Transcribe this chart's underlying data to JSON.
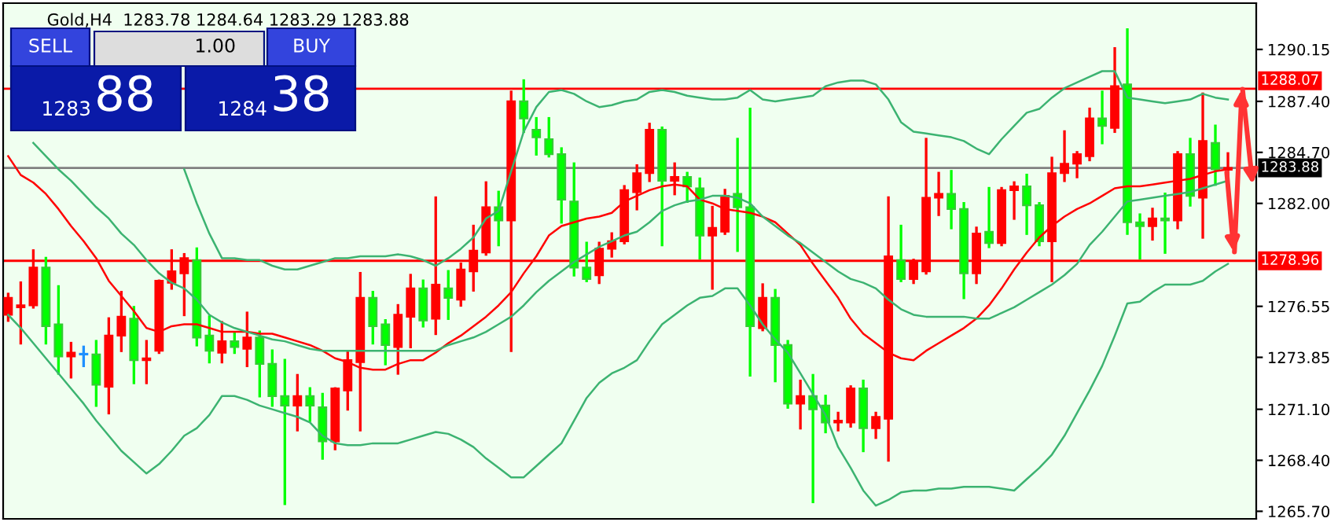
{
  "chart_data": {
    "type": "candlestick",
    "title": "Gold,H4  1283.78 1284.64 1283.29 1283.88",
    "categories": [
      null,
      null,
      null,
      null,
      null,
      null,
      null,
      null,
      null,
      null,
      null,
      null,
      null,
      null,
      null,
      null,
      null,
      null,
      null,
      null,
      null,
      null,
      null,
      null,
      null,
      null,
      null,
      null,
      null,
      null,
      null,
      null,
      null,
      null,
      null,
      null,
      null,
      null,
      null,
      null,
      null,
      null,
      null,
      null,
      null,
      null,
      null,
      null,
      null,
      null,
      null,
      null,
      null,
      null,
      null,
      null,
      null,
      null,
      null,
      null,
      null,
      null,
      null,
      null,
      null,
      null,
      null,
      null,
      null,
      null,
      null,
      null,
      null,
      null,
      null,
      null,
      null,
      null,
      null,
      null,
      null,
      null,
      null,
      null,
      null,
      null,
      null,
      null,
      null,
      null,
      null,
      null,
      null,
      null,
      null,
      null,
      null,
      null
    ],
    "ohlc": [
      [
        1276.1,
        1277.2,
        1275.8,
        1277.0
      ],
      [
        1276.5,
        1277.8,
        1274.6,
        1276.6
      ],
      [
        1276.6,
        1279.5,
        1276.5,
        1278.6
      ],
      [
        1278.6,
        1279.1,
        1274.6,
        1275.5
      ],
      [
        1275.6,
        1277.6,
        1273.0,
        1273.9
      ],
      [
        1273.9,
        1274.6,
        1272.8,
        1274.1
      ],
      [
        1274.0,
        1274.4,
        1273.4,
        1274.0
      ],
      [
        1274.0,
        1274.7,
        1271.3,
        1272.4
      ],
      [
        1272.3,
        1275.9,
        1270.9,
        1275.0
      ],
      [
        1275.0,
        1277.3,
        1274.2,
        1276.0
      ],
      [
        1275.9,
        1276.5,
        1272.5,
        1273.7
      ],
      [
        1273.7,
        1274.7,
        1272.5,
        1273.8
      ],
      [
        1274.2,
        1277.9,
        1274.1,
        1277.9
      ],
      [
        1277.8,
        1279.5,
        1277.5,
        1278.4
      ],
      [
        1278.3,
        1279.3,
        1276.1,
        1279.1
      ],
      [
        1279.0,
        1279.6,
        1274.5,
        1274.9
      ],
      [
        1275.0,
        1276.0,
        1273.6,
        1274.2
      ],
      [
        1274.1,
        1275.7,
        1273.6,
        1274.7
      ],
      [
        1274.7,
        1275.1,
        1274.1,
        1274.4
      ],
      [
        1274.3,
        1276.2,
        1273.4,
        1274.9
      ],
      [
        1274.9,
        1275.2,
        1271.8,
        1273.5
      ],
      [
        1273.5,
        1274.2,
        1271.3,
        1271.8
      ],
      [
        1271.8,
        1273.7,
        1266.1,
        1271.3
      ],
      [
        1271.3,
        1272.9,
        1270.0,
        1271.8
      ],
      [
        1271.8,
        1272.2,
        1270.5,
        1271.3
      ],
      [
        1271.2,
        1271.9,
        1268.5,
        1269.4
      ],
      [
        1269.4,
        1272.2,
        1269.0,
        1272.2
      ],
      [
        1272.1,
        1274.1,
        1271.1,
        1273.7
      ],
      [
        1273.6,
        1278.3,
        1270.0,
        1277.0
      ],
      [
        1277.0,
        1277.3,
        1274.6,
        1275.5
      ],
      [
        1275.6,
        1275.8,
        1273.5,
        1274.5
      ],
      [
        1274.4,
        1276.6,
        1273.0,
        1276.1
      ],
      [
        1276.0,
        1278.2,
        1274.4,
        1277.5
      ],
      [
        1277.5,
        1277.9,
        1275.5,
        1275.8
      ],
      [
        1275.9,
        1282.3,
        1275.1,
        1277.7
      ],
      [
        1277.5,
        1278.4,
        1275.9,
        1277.0
      ],
      [
        1276.9,
        1278.8,
        1276.6,
        1278.5
      ],
      [
        1278.4,
        1280.8,
        1277.4,
        1279.5
      ],
      [
        1279.4,
        1283.1,
        1279.3,
        1281.8
      ],
      [
        1281.8,
        1282.6,
        1279.8,
        1281.1
      ],
      [
        1281.1,
        1287.9,
        1274.2,
        1287.4
      ],
      [
        1287.4,
        1288.5,
        1285.8,
        1286.5
      ],
      [
        1285.9,
        1286.5,
        1284.6,
        1285.5
      ],
      [
        1285.4,
        1286.5,
        1284.5,
        1284.6
      ],
      [
        1284.6,
        1284.9,
        1281.0,
        1282.2
      ],
      [
        1282.1,
        1284.1,
        1278.2,
        1278.6
      ],
      [
        1278.6,
        1279.9,
        1277.9,
        1278.0
      ],
      [
        1278.2,
        1279.9,
        1277.8,
        1279.6
      ],
      [
        1279.6,
        1280.4,
        1279.2,
        1280.0
      ],
      [
        1280.0,
        1282.9,
        1279.9,
        1282.7
      ],
      [
        1282.6,
        1284.0,
        1281.7,
        1283.6
      ],
      [
        1283.6,
        1286.2,
        1283.2,
        1285.9
      ],
      [
        1285.9,
        1286.0,
        1279.8,
        1283.2
      ],
      [
        1283.2,
        1284.1,
        1282.5,
        1283.4
      ],
      [
        1283.4,
        1283.6,
        1282.1,
        1282.9
      ],
      [
        1282.8,
        1283.3,
        1279.1,
        1280.3
      ],
      [
        1280.3,
        1281.8,
        1277.5,
        1280.7
      ],
      [
        1280.5,
        1282.7,
        1280.4,
        1282.4
      ],
      [
        1282.5,
        1285.4,
        1279.5,
        1281.8
      ],
      [
        1281.8,
        1287.0,
        1272.9,
        1275.5
      ],
      [
        1275.4,
        1277.7,
        1275.3,
        1277.0
      ],
      [
        1277.0,
        1277.4,
        1272.6,
        1274.5
      ],
      [
        1274.5,
        1274.7,
        1271.2,
        1271.4
      ],
      [
        1271.4,
        1272.6,
        1270.1,
        1271.8
      ],
      [
        1271.8,
        1272.9,
        1266.2,
        1271.1
      ],
      [
        1271.3,
        1271.8,
        1269.9,
        1270.4
      ],
      [
        1270.4,
        1270.9,
        1270.0,
        1270.5
      ],
      [
        1270.4,
        1272.3,
        1270.2,
        1272.2
      ],
      [
        1272.2,
        1272.6,
        1268.9,
        1270.1
      ],
      [
        1270.1,
        1270.9,
        1269.6,
        1270.7
      ],
      [
        1270.6,
        1282.3,
        1268.4,
        1279.2
      ],
      [
        1279.0,
        1280.8,
        1277.9,
        1278.0
      ],
      [
        1278.0,
        1279.0,
        1277.8,
        1278.9
      ],
      [
        1278.4,
        1285.4,
        1278.3,
        1282.3
      ],
      [
        1282.3,
        1283.6,
        1281.4,
        1282.5
      ],
      [
        1282.5,
        1283.7,
        1280.7,
        1281.7
      ],
      [
        1281.7,
        1282.0,
        1277.0,
        1278.3
      ],
      [
        1278.3,
        1280.7,
        1277.8,
        1280.4
      ],
      [
        1280.5,
        1282.8,
        1279.7,
        1279.9
      ],
      [
        1279.9,
        1282.8,
        1279.8,
        1282.7
      ],
      [
        1282.7,
        1283.1,
        1281.2,
        1282.9
      ],
      [
        1282.9,
        1283.5,
        1280.4,
        1281.9
      ],
      [
        1281.9,
        1282.0,
        1279.8,
        1280.0
      ],
      [
        1280.0,
        1284.4,
        1277.9,
        1283.6
      ],
      [
        1283.6,
        1285.8,
        1283.2,
        1284.1
      ],
      [
        1284.1,
        1284.7,
        1283.4,
        1284.6
      ],
      [
        1284.5,
        1287.0,
        1284.3,
        1286.5
      ],
      [
        1286.5,
        1287.9,
        1285.2,
        1286.1
      ],
      [
        1286.0,
        1290.2,
        1285.8,
        1288.2
      ],
      [
        1288.3,
        1291.2,
        1280.4,
        1281.0
      ],
      [
        1281.0,
        1281.4,
        1279.1,
        1280.8
      ],
      [
        1280.8,
        1281.7,
        1280.1,
        1281.2
      ],
      [
        1281.2,
        1282.5,
        1279.4,
        1281.1
      ],
      [
        1281.1,
        1284.7,
        1280.7,
        1284.6
      ],
      [
        1284.6,
        1285.4,
        1281.9,
        1282.4
      ],
      [
        1282.3,
        1287.8,
        1280.2,
        1285.3
      ],
      [
        1285.2,
        1286.1,
        1283.0,
        1283.8
      ],
      [
        1283.78,
        1284.64,
        1283.29,
        1283.88
      ]
    ],
    "colors": [
      "#ff0000",
      "#ff0000",
      "#ff0000",
      "#00ff00",
      "#00ff00",
      "#ff0000",
      "#1e90ff",
      "#00ff00",
      "#ff0000",
      "#ff0000",
      "#00ff00",
      "#ff0000",
      "#ff0000",
      "#ff0000",
      "#ff0000",
      "#00ff00",
      "#00ff00",
      "#ff0000",
      "#00ff00",
      "#ff0000",
      "#00ff00",
      "#00ff00",
      "#00ff00",
      "#ff0000",
      "#00ff00",
      "#00ff00",
      "#ff0000",
      "#ff0000",
      "#ff0000",
      "#00ff00",
      "#00ff00",
      "#ff0000",
      "#ff0000",
      "#00ff00",
      "#ff0000",
      "#00ff00",
      "#ff0000",
      "#ff0000",
      "#ff0000",
      "#00ff00",
      "#ff0000",
      "#00ff00",
      "#00ff00",
      "#00ff00",
      "#00ff00",
      "#00ff00",
      "#00ff00",
      "#ff0000",
      "#ff0000",
      "#ff0000",
      "#ff0000",
      "#ff0000",
      "#00ff00",
      "#ff0000",
      "#00ff00",
      "#00ff00",
      "#ff0000",
      "#ff0000",
      "#00ff00",
      "#00ff00",
      "#ff0000",
      "#00ff00",
      "#00ff00",
      "#ff0000",
      "#00ff00",
      "#00ff00",
      "#ff0000",
      "#ff0000",
      "#00ff00",
      "#ff0000",
      "#ff0000",
      "#00ff00",
      "#ff0000",
      "#ff0000",
      "#ff0000",
      "#00ff00",
      "#00ff00",
      "#ff0000",
      "#00ff00",
      "#ff0000",
      "#ff0000",
      "#00ff00",
      "#00ff00",
      "#ff0000",
      "#ff0000",
      "#ff0000",
      "#ff0000",
      "#00ff00",
      "#ff0000",
      "#00ff00",
      "#00ff00",
      "#ff0000",
      "#00ff00",
      "#ff0000",
      "#00ff00",
      "#ff0000",
      "#00ff00",
      "#ff0000"
    ],
    "series": [
      {
        "type": "line",
        "color": "#ff0000",
        "values": [
          1284.5,
          1283.5,
          1283.1,
          1282.5,
          1281.7,
          1280.8,
          1280.0,
          1279.1,
          1277.9,
          1277.1,
          1276.3,
          1275.4,
          1275.2,
          1275.5,
          1275.6,
          1275.6,
          1275.4,
          1275.2,
          1275.2,
          1275.2,
          1275.1,
          1275.1,
          1274.9,
          1274.7,
          1274.5,
          1274.2,
          1273.8,
          1273.6,
          1273.3,
          1273.2,
          1273.2,
          1273.5,
          1273.7,
          1273.7,
          1274.1,
          1274.6,
          1275.0,
          1275.5,
          1276.0,
          1276.6,
          1277.3,
          1278.3,
          1279.2,
          1280.3,
          1280.8,
          1281.0,
          1281.2,
          1281.3,
          1281.5,
          1282.1,
          1282.4,
          1282.7,
          1282.9,
          1283.0,
          1282.9,
          1282.2,
          1282.0,
          1281.7,
          1281.6,
          1281.5,
          1281.3,
          1281.0,
          1280.4,
          1279.8,
          1278.8,
          1277.9,
          1277.0,
          1275.9,
          1275.1,
          1274.6,
          1274.1,
          1273.8,
          1273.7,
          1274.2,
          1274.6,
          1275.0,
          1275.4,
          1275.9,
          1276.6,
          1277.5,
          1278.5,
          1279.4,
          1280.2,
          1280.8,
          1281.3,
          1281.7,
          1282.0,
          1282.4,
          1282.8,
          1282.9,
          1282.9,
          1283.0,
          1283.1,
          1283.2,
          1283.3,
          1283.5,
          1283.7,
          1283.8
        ]
      },
      {
        "type": "line",
        "color": "#3cb371",
        "values": [
          null,
          null,
          1285.2,
          1284.5,
          1283.8,
          1283.2,
          1282.5,
          1281.8,
          1281.2,
          1280.4,
          1279.8,
          1279.0,
          1278.3,
          1277.8,
          1277.5,
          1276.9,
          1276.1,
          1275.7,
          1275.4,
          1275.2,
          1275.0,
          1274.8,
          1274.7,
          1274.5,
          1274.3,
          1274.2,
          1274.2,
          1274.2,
          1274.2,
          1274.2,
          1274.2,
          1274.2,
          1274.2,
          1274.2,
          1274.2,
          1274.5,
          1274.7,
          1274.9,
          1275.2,
          1275.6,
          1276.0,
          1276.6,
          1277.3,
          1277.9,
          1278.4,
          1278.9,
          1279.3,
          1279.7,
          1280.0,
          1280.3,
          1280.5,
          1281.0,
          1281.6,
          1281.9,
          1282.1,
          1282.2,
          1282.4,
          1282.4,
          1282.3,
          1282.0,
          1281.3,
          1280.8,
          1280.3,
          1279.9,
          1279.4,
          1278.9,
          1278.4,
          1278.0,
          1277.8,
          1277.5,
          1276.9,
          1276.4,
          1276.1,
          1276.0,
          1276.0,
          1276.0,
          1276.0,
          1275.9,
          1275.9,
          1276.2,
          1276.5,
          1276.9,
          1277.3,
          1277.7,
          1278.2,
          1278.8,
          1279.8,
          1280.5,
          1281.3,
          1282.1,
          1282.2,
          1282.3,
          1282.4,
          1282.5,
          1282.6,
          1282.8,
          1283.0,
          1283.2
        ]
      },
      {
        "type": "line",
        "color": "#3cb371",
        "values": [
          null,
          null,
          null,
          null,
          null,
          null,
          null,
          null,
          null,
          null,
          null,
          null,
          null,
          null,
          1283.8,
          1282.0,
          1280.4,
          1279.1,
          1279.1,
          1279.0,
          1279.0,
          1278.7,
          1278.5,
          1278.5,
          1278.7,
          1278.9,
          1279.1,
          1279.1,
          1279.2,
          1279.2,
          1279.2,
          1279.3,
          1279.2,
          1279.0,
          1278.7,
          1279.1,
          1279.6,
          1280.2,
          1281.2,
          1281.6,
          1283.7,
          1285.8,
          1287.1,
          1287.9,
          1288.0,
          1287.8,
          1287.4,
          1287.1,
          1287.2,
          1287.4,
          1287.5,
          1287.9,
          1288.0,
          1287.9,
          1287.7,
          1287.6,
          1287.5,
          1287.5,
          1287.6,
          1288.0,
          1287.5,
          1287.4,
          1287.5,
          1287.6,
          1287.7,
          1288.2,
          1288.4,
          1288.5,
          1288.5,
          1288.3,
          1287.5,
          1286.3,
          1285.8,
          1285.7,
          1285.6,
          1285.5,
          1285.3,
          1284.9,
          1284.6,
          1285.4,
          1286.1,
          1286.8,
          1287.0,
          1287.6,
          1288.1,
          1288.4,
          1288.7,
          1289.0,
          1289.0,
          1287.6,
          1287.5,
          1287.4,
          1287.3,
          1287.4,
          1287.5,
          1287.8,
          1287.6,
          1287.5
        ]
      },
      {
        "type": "line",
        "color": "#3cb371",
        "values": [
          1276.1,
          1275.4,
          1274.6,
          1273.8,
          1273.0,
          1272.2,
          1271.4,
          1270.5,
          1269.7,
          1268.9,
          1268.3,
          1267.7,
          1268.2,
          1268.9,
          1269.7,
          1270.1,
          1270.8,
          1271.8,
          1271.8,
          1271.6,
          1271.3,
          1271.1,
          1270.9,
          1270.7,
          1270.4,
          1269.7,
          1269.3,
          1269.2,
          1269.2,
          1269.3,
          1269.3,
          1269.3,
          1269.5,
          1269.7,
          1269.9,
          1269.8,
          1269.5,
          1269.1,
          1268.5,
          1268.0,
          1267.5,
          1267.5,
          1268.1,
          1268.7,
          1269.3,
          1270.5,
          1271.7,
          1272.5,
          1273.0,
          1273.3,
          1273.7,
          1274.7,
          1275.6,
          1276.1,
          1276.6,
          1277.0,
          1277.1,
          1277.5,
          1277.5,
          1276.6,
          1275.6,
          1274.8,
          1274.1,
          1273.0,
          1271.9,
          1270.8,
          1269.1,
          1268.0,
          1266.8,
          1266.0,
          1266.3,
          1266.7,
          1266.8,
          1266.8,
          1266.9,
          1266.9,
          1267.0,
          1267.0,
          1267.0,
          1266.9,
          1266.8,
          1267.4,
          1268.0,
          1268.7,
          1269.7,
          1270.9,
          1272.1,
          1273.4,
          1275.0,
          1276.7,
          1276.8,
          1277.3,
          1277.7,
          1277.7,
          1277.7,
          1277.9,
          1278.4,
          1278.8
        ]
      }
    ],
    "ylim": [
      1265.3,
      1292.6
    ],
    "yticks": [
      1290.15,
      {
        "value": 1287.4,
        "label": "1287.40"
      },
      {
        "value": 1284.7,
        "label": "1284.70"
      },
      {
        "value": 1282.0,
        "label": "1282.00"
      },
      1276.55,
      1273.85,
      {
        "value": 1271.1,
        "label": "1271.10"
      },
      {
        "value": 1268.4,
        "label": "1268.40"
      },
      {
        "value": 1265.7,
        "label": "1265.70"
      }
    ],
    "ref_lines": [
      {
        "axis": "y",
        "value": 1288.07,
        "label": "1288.07",
        "color": "#ff0000"
      },
      {
        "axis": "y",
        "value": 1278.96,
        "label": "1278.96",
        "color": "#ff0000"
      },
      {
        "axis": "y",
        "value": 1283.88,
        "label": "1283.88",
        "color": "#808080"
      }
    ],
    "annotations": [
      "SELL",
      "1.00",
      "BUY",
      "1283",
      "88",
      "1284",
      "38"
    ],
    "grid": false,
    "legend": false
  }
}
